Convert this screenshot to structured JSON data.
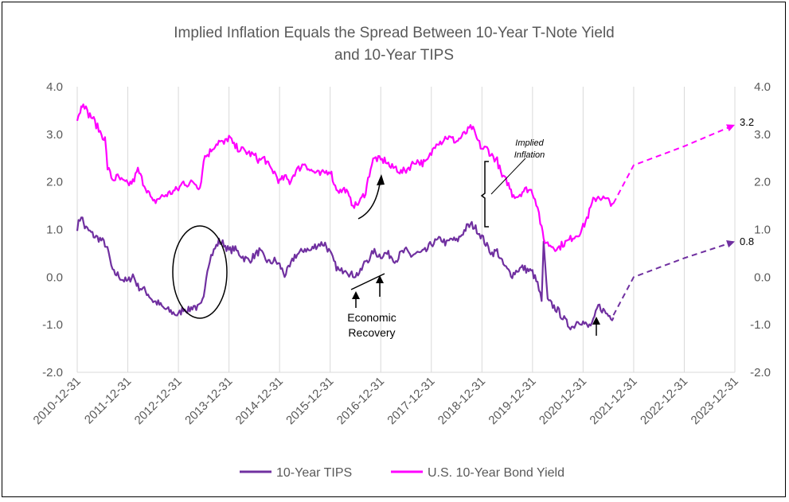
{
  "chart_data": {
    "type": "line",
    "title": [
      "Implied Inflation Equals the Spread Between 10-Year T-Note Yield",
      "and 10-Year TIPS"
    ],
    "xlabel": "",
    "ylabel": "",
    "ylim": [
      -2.0,
      4.0
    ],
    "yticks": [
      "4.0",
      "3.0",
      "2.0",
      "1.0",
      "0.0",
      "-1.0",
      "-2.0"
    ],
    "y2ticks": [
      "4.0",
      "3.0",
      "2.0",
      "1.0",
      "0.0",
      "-1.0",
      "-2.0"
    ],
    "xticks": [
      "2010-12-31",
      "2011-12-31",
      "2012-12-31",
      "2013-12-31",
      "2014-12-31",
      "2015-12-31",
      "2016-12-31",
      "2017-12-31",
      "2018-12-31",
      "2019-12-31",
      "2020-12-31",
      "2021-12-31",
      "2022-12-31",
      "2023-12-31"
    ],
    "xlim": [
      2011.0,
      2024.0
    ],
    "grid": "vertical",
    "legend": "bottom",
    "series": [
      {
        "name": "10-Year TIPS",
        "color": "#7030A0",
        "x": [
          2011.0,
          2011.08,
          2011.15,
          2011.25,
          2011.35,
          2011.45,
          2011.55,
          2011.62,
          2011.7,
          2011.8,
          2011.9,
          2012.0,
          2012.1,
          2012.2,
          2012.3,
          2012.4,
          2012.5,
          2012.6,
          2012.7,
          2012.8,
          2012.9,
          2013.0,
          2013.1,
          2013.2,
          2013.3,
          2013.38,
          2013.45,
          2013.5,
          2013.55,
          2013.62,
          2013.7,
          2013.8,
          2013.9,
          2014.0,
          2014.1,
          2014.2,
          2014.3,
          2014.4,
          2014.5,
          2014.6,
          2014.7,
          2014.8,
          2014.9,
          2015.0,
          2015.1,
          2015.2,
          2015.3,
          2015.4,
          2015.5,
          2015.6,
          2015.7,
          2015.8,
          2015.9,
          2016.0,
          2016.1,
          2016.2,
          2016.3,
          2016.4,
          2016.5,
          2016.6,
          2016.7,
          2016.8,
          2016.85,
          2016.9,
          2017.0,
          2017.1,
          2017.2,
          2017.3,
          2017.4,
          2017.5,
          2017.6,
          2017.7,
          2017.8,
          2017.9,
          2018.0,
          2018.1,
          2018.2,
          2018.3,
          2018.4,
          2018.5,
          2018.6,
          2018.7,
          2018.8,
          2018.9,
          2019.0,
          2019.1,
          2019.2,
          2019.3,
          2019.4,
          2019.5,
          2019.6,
          2019.7,
          2019.8,
          2019.9,
          2020.0,
          2020.1,
          2020.18,
          2020.22,
          2020.3,
          2020.4,
          2020.5,
          2020.6,
          2020.7,
          2020.8,
          2020.9,
          2021.0,
          2021.1,
          2021.2,
          2021.3,
          2021.4,
          2021.5,
          2021.6
        ],
        "y": [
          1.05,
          1.3,
          1.05,
          0.95,
          0.85,
          0.8,
          0.7,
          0.5,
          0.1,
          0.05,
          -0.05,
          -0.1,
          0.05,
          -0.2,
          -0.25,
          -0.35,
          -0.5,
          -0.55,
          -0.65,
          -0.7,
          -0.75,
          -0.8,
          -0.65,
          -0.7,
          -0.6,
          -0.65,
          -0.6,
          -0.45,
          0.05,
          0.4,
          0.55,
          0.75,
          0.7,
          0.55,
          0.6,
          0.5,
          0.4,
          0.35,
          0.45,
          0.55,
          0.4,
          0.3,
          0.35,
          0.25,
          0.05,
          0.2,
          0.45,
          0.5,
          0.6,
          0.55,
          0.65,
          0.7,
          0.7,
          0.5,
          0.25,
          0.1,
          0.2,
          0.05,
          0.05,
          0.1,
          0.35,
          0.4,
          0.55,
          0.5,
          0.45,
          0.5,
          0.45,
          0.35,
          0.5,
          0.55,
          0.45,
          0.5,
          0.5,
          0.55,
          0.7,
          0.75,
          0.8,
          0.7,
          0.8,
          0.75,
          0.9,
          1.05,
          1.1,
          1.0,
          0.85,
          0.65,
          0.5,
          0.55,
          0.3,
          0.15,
          0.05,
          0.15,
          0.2,
          0.15,
          0.1,
          -0.15,
          -0.5,
          0.75,
          -0.5,
          -0.6,
          -0.7,
          -0.85,
          -1.0,
          -1.05,
          -0.9,
          -0.95,
          -1.05,
          -0.95,
          -0.6,
          -0.7,
          -0.8,
          -0.85
        ]
      },
      {
        "name": "U.S. 10-Year Bond Yield",
        "color": "#FF00FF",
        "x": [
          2011.0,
          2011.06,
          2011.12,
          2011.2,
          2011.3,
          2011.4,
          2011.48,
          2011.55,
          2011.6,
          2011.7,
          2011.8,
          2011.9,
          2012.0,
          2012.1,
          2012.2,
          2012.3,
          2012.4,
          2012.5,
          2012.6,
          2012.7,
          2012.8,
          2012.9,
          2013.0,
          2013.1,
          2013.2,
          2013.3,
          2013.4,
          2013.45,
          2013.5,
          2013.6,
          2013.7,
          2013.8,
          2013.9,
          2014.0,
          2014.1,
          2014.2,
          2014.3,
          2014.4,
          2014.5,
          2014.6,
          2014.7,
          2014.8,
          2014.9,
          2015.0,
          2015.1,
          2015.2,
          2015.3,
          2015.4,
          2015.5,
          2015.6,
          2015.7,
          2015.8,
          2015.9,
          2016.0,
          2016.1,
          2016.2,
          2016.3,
          2016.4,
          2016.5,
          2016.6,
          2016.7,
          2016.8,
          2016.85,
          2016.9,
          2017.0,
          2017.1,
          2017.2,
          2017.3,
          2017.4,
          2017.5,
          2017.6,
          2017.7,
          2017.8,
          2017.9,
          2018.0,
          2018.1,
          2018.2,
          2018.3,
          2018.4,
          2018.5,
          2018.6,
          2018.7,
          2018.8,
          2018.9,
          2019.0,
          2019.1,
          2019.2,
          2019.3,
          2019.4,
          2019.5,
          2019.6,
          2019.7,
          2019.8,
          2019.9,
          2020.0,
          2020.1,
          2020.18,
          2020.22,
          2020.3,
          2020.4,
          2020.5,
          2020.6,
          2020.7,
          2020.8,
          2020.9,
          2021.0,
          2021.1,
          2021.2,
          2021.3,
          2021.4,
          2021.5,
          2021.6
        ],
        "y": [
          3.35,
          3.5,
          3.7,
          3.45,
          3.35,
          3.15,
          3.0,
          2.9,
          2.3,
          2.05,
          2.1,
          2.0,
          1.95,
          2.0,
          2.25,
          2.0,
          1.8,
          1.55,
          1.65,
          1.7,
          1.75,
          1.8,
          1.85,
          2.0,
          1.95,
          2.0,
          1.9,
          2.0,
          2.5,
          2.6,
          2.75,
          2.85,
          2.8,
          2.95,
          2.75,
          2.7,
          2.65,
          2.6,
          2.55,
          2.45,
          2.5,
          2.3,
          2.2,
          2.0,
          2.1,
          2.0,
          2.2,
          2.3,
          2.4,
          2.25,
          2.2,
          2.15,
          2.2,
          2.25,
          1.9,
          1.8,
          1.85,
          1.6,
          1.5,
          1.6,
          1.8,
          2.3,
          2.45,
          2.5,
          2.45,
          2.45,
          2.3,
          2.3,
          2.2,
          2.25,
          2.35,
          2.45,
          2.4,
          2.4,
          2.6,
          2.85,
          2.85,
          2.95,
          2.9,
          2.85,
          2.95,
          3.05,
          3.15,
          2.9,
          2.7,
          2.7,
          2.55,
          2.45,
          2.1,
          2.0,
          1.75,
          1.7,
          1.8,
          1.85,
          1.8,
          1.5,
          1.0,
          0.8,
          0.7,
          0.65,
          0.6,
          0.7,
          0.75,
          0.85,
          0.9,
          1.05,
          1.3,
          1.6,
          1.7,
          1.65,
          1.6,
          1.55
        ]
      }
    ],
    "projections": [
      {
        "series": "10-Year TIPS",
        "x": [
          2021.6,
          2022.0,
          2023.0,
          2024.0
        ],
        "y": [
          -0.8,
          0.0,
          0.4,
          0.75
        ]
      },
      {
        "series": "U.S. 10-Year Bond Yield",
        "x": [
          2021.6,
          2022.0,
          2023.0,
          2024.0
        ],
        "y": [
          1.55,
          2.35,
          2.75,
          3.2
        ]
      }
    ],
    "annotations": {
      "end_label_bond": "3.2",
      "end_label_tips": "0.8",
      "implied_inflation_line1": "Implied",
      "implied_inflation_line2": "Inflation",
      "economic_line1": "Economic",
      "economic_line2": "Recovery"
    }
  }
}
